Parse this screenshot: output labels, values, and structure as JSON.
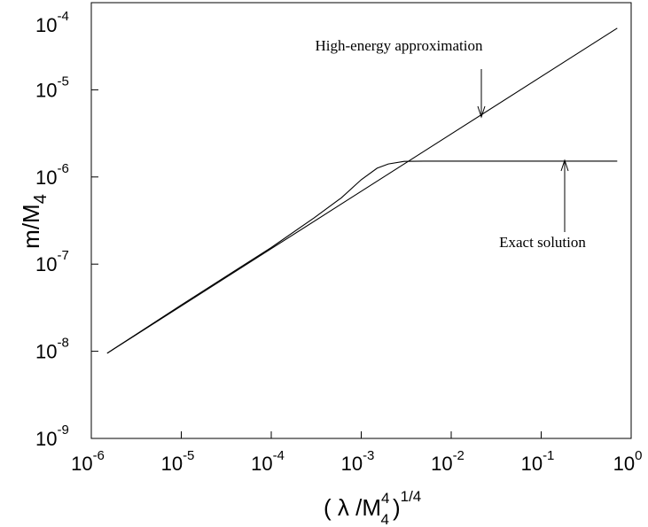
{
  "chart_data": {
    "type": "line",
    "xlabel": {
      "open": "( λ /M",
      "sup": "4",
      "sub": "4",
      "close": ")",
      "exp": "1/4"
    },
    "ylabel": {
      "text": "m/M",
      "sub": "4"
    },
    "xscale": "log",
    "yscale": "log",
    "xlim": [
      1e-06,
      1
    ],
    "ylim": [
      1e-09,
      0.0001
    ],
    "xticks": [
      {
        "value": 1e-06,
        "label": "10",
        "exponent": "-6"
      },
      {
        "value": 1e-05,
        "label": "10",
        "exponent": "-5"
      },
      {
        "value": 0.0001,
        "label": "10",
        "exponent": "-4"
      },
      {
        "value": 0.001,
        "label": "10",
        "exponent": "-3"
      },
      {
        "value": 0.01,
        "label": "10",
        "exponent": "-2"
      },
      {
        "value": 0.1,
        "label": "10",
        "exponent": "-1"
      },
      {
        "value": 1,
        "label": "10",
        "exponent": "0"
      }
    ],
    "yticks": [
      {
        "value": 1e-09,
        "label": "10",
        "exponent": "-9"
      },
      {
        "value": 1e-08,
        "label": "10",
        "exponent": "-8"
      },
      {
        "value": 1e-07,
        "label": "10",
        "exponent": "-7"
      },
      {
        "value": 1e-06,
        "label": "10",
        "exponent": "-6"
      },
      {
        "value": 1e-05,
        "label": "10",
        "exponent": "-5"
      },
      {
        "value": 0.0001,
        "label": "10",
        "exponent": "-4"
      }
    ],
    "annotations": [
      "High-energy approximation",
      "Exact solution"
    ],
    "series": [
      {
        "name": "High-energy approximation",
        "color": "#000000",
        "x": [
          1.5e-06,
          0.7
        ],
        "values": [
          9.5e-09,
          5.1e-05
        ]
      },
      {
        "name": "Exact solution",
        "color": "#000000",
        "x": [
          1.5e-06,
          1e-05,
          0.0001,
          0.0003,
          0.0006,
          0.001,
          0.0015,
          0.002,
          0.003,
          0.005,
          0.01,
          0.1,
          0.7
        ],
        "values": [
          9.5e-09,
          3.4e-08,
          1.55e-07,
          3.4e-07,
          5.75e-07,
          9.3e-07,
          1.26e-06,
          1.41e-06,
          1.51e-06,
          1.52e-06,
          1.52e-06,
          1.52e-06,
          1.52e-06
        ]
      }
    ]
  }
}
